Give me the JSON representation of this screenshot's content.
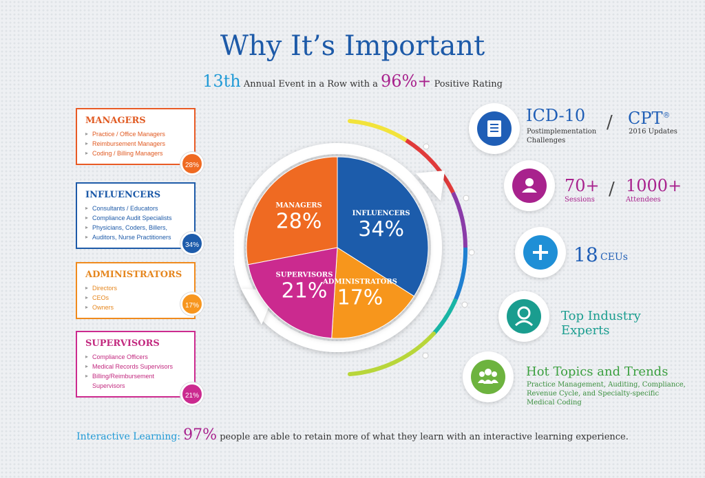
{
  "title": "Why It’s Important",
  "subtitle": {
    "n1": "13th",
    "t1": " Annual Event in a Row with a ",
    "n2": "96%+",
    "t2": " Positive Rating"
  },
  "colors": {
    "managers": "#ef6a22",
    "influencers": "#1e5cab",
    "administrators": "#f7961f",
    "supervisors": "#cb2a8f",
    "accent_blue": "#1f9ad6",
    "accent_purple": "#a8228d",
    "green": "#3a9f3e",
    "teal": "#1a9d8f"
  },
  "boxes": [
    {
      "title": "MANAGERS",
      "items": [
        "Practice / Office Managers",
        "Reimbursement Managers",
        "Coding / Billing Managers"
      ],
      "badge": "28%"
    },
    {
      "title": "INFLUENCERS",
      "items": [
        "Consultants / Educators",
        "Compliance Audit Specialists",
        "Physicians, Coders, Billers,",
        "Auditors, Nurse Practitioners"
      ],
      "badge": "34%"
    },
    {
      "title": "ADMINISTRATORS",
      "items": [
        "Directors",
        "CEOs",
        "Owners"
      ],
      "badge": "17%"
    },
    {
      "title": "SUPERVISORS",
      "items": [
        "Compliance Officers",
        "Medical Records Supervisors",
        "Billing/Reimbursement Supervisors"
      ],
      "badge": "21%"
    }
  ],
  "chart_data": {
    "type": "pie",
    "series": [
      {
        "label": "MANAGERS",
        "display": "28%",
        "value": 28
      },
      {
        "label": "INFLUENCERS",
        "display": "34%",
        "value": 34
      },
      {
        "label": "ADMINISTRATORS",
        "display": "17%",
        "value": 17
      },
      {
        "label": "SUPERVISORS",
        "display": "21%",
        "value": 21
      }
    ]
  },
  "features": {
    "icd": {
      "title": "ICD-10",
      "sub1": "Postimplementation",
      "sub2": "Challenges",
      "cpt": "CPT",
      "reg": "®",
      "cpt_sub": "2016 Updates",
      "icon": "document-icon"
    },
    "sessions": {
      "n1": "70+",
      "l1": "Sessions",
      "n2": "1000+",
      "l2": "Attendees",
      "icon": "user-icon"
    },
    "ceu": {
      "n": "18",
      "l": "CEUs",
      "icon": "plus-icon"
    },
    "experts": {
      "l1": "Top Industry",
      "l2": "Experts",
      "icon": "expert-icon"
    },
    "topics": {
      "title": "Hot Topics and Trends",
      "d1": "Practice Management, Auditing, Compliance,",
      "d2": "Revenue Cycle, and Specialty-specific",
      "d3": "Medical Coding",
      "icon": "group-icon"
    }
  },
  "footer": {
    "lead": "Interactive Learning:",
    "pct": "97%",
    "text": " people are able to retain more of what they learn with an interactive learning experience."
  }
}
